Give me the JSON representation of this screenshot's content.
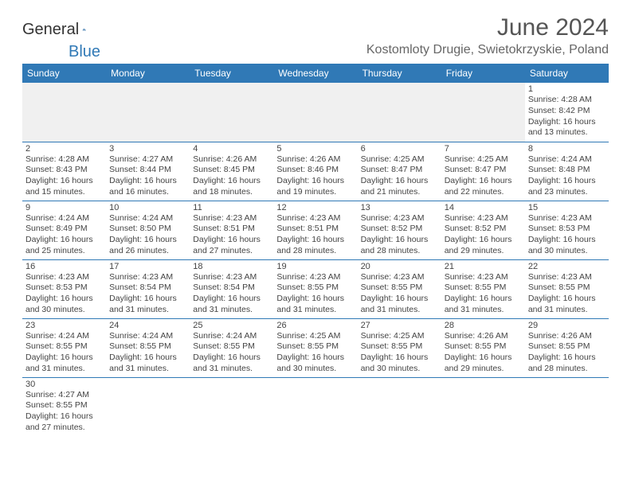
{
  "logo": {
    "text1": "General",
    "text2": "Blue"
  },
  "title": "June 2024",
  "location": "Kostomloty Drugie, Swietokrzyskie, Poland",
  "header_bg": "#3079b6",
  "header_fg": "#ffffff",
  "border_color": "#3079b6",
  "empty_bg": "#f0f0f0",
  "weekdays": [
    "Sunday",
    "Monday",
    "Tuesday",
    "Wednesday",
    "Thursday",
    "Friday",
    "Saturday"
  ],
  "cells": [
    {
      "day": "",
      "empty": true
    },
    {
      "day": "",
      "empty": true
    },
    {
      "day": "",
      "empty": true
    },
    {
      "day": "",
      "empty": true
    },
    {
      "day": "",
      "empty": true
    },
    {
      "day": "",
      "empty": true
    },
    {
      "day": "1",
      "sunrise": "Sunrise: 4:28 AM",
      "sunset": "Sunset: 8:42 PM",
      "dl1": "Daylight: 16 hours",
      "dl2": "and 13 minutes."
    },
    {
      "day": "2",
      "sunrise": "Sunrise: 4:28 AM",
      "sunset": "Sunset: 8:43 PM",
      "dl1": "Daylight: 16 hours",
      "dl2": "and 15 minutes."
    },
    {
      "day": "3",
      "sunrise": "Sunrise: 4:27 AM",
      "sunset": "Sunset: 8:44 PM",
      "dl1": "Daylight: 16 hours",
      "dl2": "and 16 minutes."
    },
    {
      "day": "4",
      "sunrise": "Sunrise: 4:26 AM",
      "sunset": "Sunset: 8:45 PM",
      "dl1": "Daylight: 16 hours",
      "dl2": "and 18 minutes."
    },
    {
      "day": "5",
      "sunrise": "Sunrise: 4:26 AM",
      "sunset": "Sunset: 8:46 PM",
      "dl1": "Daylight: 16 hours",
      "dl2": "and 19 minutes."
    },
    {
      "day": "6",
      "sunrise": "Sunrise: 4:25 AM",
      "sunset": "Sunset: 8:47 PM",
      "dl1": "Daylight: 16 hours",
      "dl2": "and 21 minutes."
    },
    {
      "day": "7",
      "sunrise": "Sunrise: 4:25 AM",
      "sunset": "Sunset: 8:47 PM",
      "dl1": "Daylight: 16 hours",
      "dl2": "and 22 minutes."
    },
    {
      "day": "8",
      "sunrise": "Sunrise: 4:24 AM",
      "sunset": "Sunset: 8:48 PM",
      "dl1": "Daylight: 16 hours",
      "dl2": "and 23 minutes."
    },
    {
      "day": "9",
      "sunrise": "Sunrise: 4:24 AM",
      "sunset": "Sunset: 8:49 PM",
      "dl1": "Daylight: 16 hours",
      "dl2": "and 25 minutes."
    },
    {
      "day": "10",
      "sunrise": "Sunrise: 4:24 AM",
      "sunset": "Sunset: 8:50 PM",
      "dl1": "Daylight: 16 hours",
      "dl2": "and 26 minutes."
    },
    {
      "day": "11",
      "sunrise": "Sunrise: 4:23 AM",
      "sunset": "Sunset: 8:51 PM",
      "dl1": "Daylight: 16 hours",
      "dl2": "and 27 minutes."
    },
    {
      "day": "12",
      "sunrise": "Sunrise: 4:23 AM",
      "sunset": "Sunset: 8:51 PM",
      "dl1": "Daylight: 16 hours",
      "dl2": "and 28 minutes."
    },
    {
      "day": "13",
      "sunrise": "Sunrise: 4:23 AM",
      "sunset": "Sunset: 8:52 PM",
      "dl1": "Daylight: 16 hours",
      "dl2": "and 28 minutes."
    },
    {
      "day": "14",
      "sunrise": "Sunrise: 4:23 AM",
      "sunset": "Sunset: 8:52 PM",
      "dl1": "Daylight: 16 hours",
      "dl2": "and 29 minutes."
    },
    {
      "day": "15",
      "sunrise": "Sunrise: 4:23 AM",
      "sunset": "Sunset: 8:53 PM",
      "dl1": "Daylight: 16 hours",
      "dl2": "and 30 minutes."
    },
    {
      "day": "16",
      "sunrise": "Sunrise: 4:23 AM",
      "sunset": "Sunset: 8:53 PM",
      "dl1": "Daylight: 16 hours",
      "dl2": "and 30 minutes."
    },
    {
      "day": "17",
      "sunrise": "Sunrise: 4:23 AM",
      "sunset": "Sunset: 8:54 PM",
      "dl1": "Daylight: 16 hours",
      "dl2": "and 31 minutes."
    },
    {
      "day": "18",
      "sunrise": "Sunrise: 4:23 AM",
      "sunset": "Sunset: 8:54 PM",
      "dl1": "Daylight: 16 hours",
      "dl2": "and 31 minutes."
    },
    {
      "day": "19",
      "sunrise": "Sunrise: 4:23 AM",
      "sunset": "Sunset: 8:55 PM",
      "dl1": "Daylight: 16 hours",
      "dl2": "and 31 minutes."
    },
    {
      "day": "20",
      "sunrise": "Sunrise: 4:23 AM",
      "sunset": "Sunset: 8:55 PM",
      "dl1": "Daylight: 16 hours",
      "dl2": "and 31 minutes."
    },
    {
      "day": "21",
      "sunrise": "Sunrise: 4:23 AM",
      "sunset": "Sunset: 8:55 PM",
      "dl1": "Daylight: 16 hours",
      "dl2": "and 31 minutes."
    },
    {
      "day": "22",
      "sunrise": "Sunrise: 4:23 AM",
      "sunset": "Sunset: 8:55 PM",
      "dl1": "Daylight: 16 hours",
      "dl2": "and 31 minutes."
    },
    {
      "day": "23",
      "sunrise": "Sunrise: 4:24 AM",
      "sunset": "Sunset: 8:55 PM",
      "dl1": "Daylight: 16 hours",
      "dl2": "and 31 minutes."
    },
    {
      "day": "24",
      "sunrise": "Sunrise: 4:24 AM",
      "sunset": "Sunset: 8:55 PM",
      "dl1": "Daylight: 16 hours",
      "dl2": "and 31 minutes."
    },
    {
      "day": "25",
      "sunrise": "Sunrise: 4:24 AM",
      "sunset": "Sunset: 8:55 PM",
      "dl1": "Daylight: 16 hours",
      "dl2": "and 31 minutes."
    },
    {
      "day": "26",
      "sunrise": "Sunrise: 4:25 AM",
      "sunset": "Sunset: 8:55 PM",
      "dl1": "Daylight: 16 hours",
      "dl2": "and 30 minutes."
    },
    {
      "day": "27",
      "sunrise": "Sunrise: 4:25 AM",
      "sunset": "Sunset: 8:55 PM",
      "dl1": "Daylight: 16 hours",
      "dl2": "and 30 minutes."
    },
    {
      "day": "28",
      "sunrise": "Sunrise: 4:26 AM",
      "sunset": "Sunset: 8:55 PM",
      "dl1": "Daylight: 16 hours",
      "dl2": "and 29 minutes."
    },
    {
      "day": "29",
      "sunrise": "Sunrise: 4:26 AM",
      "sunset": "Sunset: 8:55 PM",
      "dl1": "Daylight: 16 hours",
      "dl2": "and 28 minutes."
    },
    {
      "day": "30",
      "sunrise": "Sunrise: 4:27 AM",
      "sunset": "Sunset: 8:55 PM",
      "dl1": "Daylight: 16 hours",
      "dl2": "and 27 minutes."
    },
    {
      "day": "",
      "empty": false
    },
    {
      "day": "",
      "empty": false
    },
    {
      "day": "",
      "empty": false
    },
    {
      "day": "",
      "empty": false
    },
    {
      "day": "",
      "empty": false
    },
    {
      "day": "",
      "empty": false
    }
  ]
}
